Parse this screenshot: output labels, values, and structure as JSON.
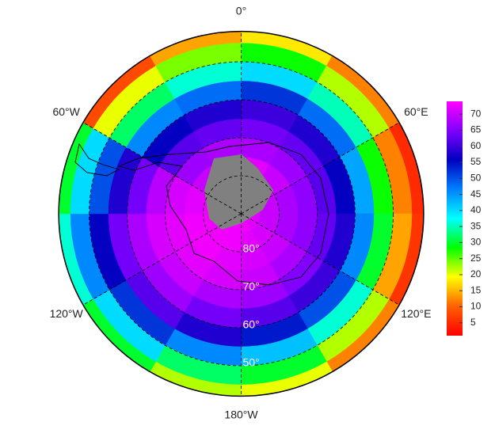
{
  "field": {
    "lat_edges": [
      -90,
      -85,
      -80,
      -75,
      -70,
      -65,
      -60,
      -55,
      -50,
      -45,
      -42
    ],
    "lon_edges": [
      0,
      30,
      60,
      90,
      120,
      150,
      180,
      210,
      240,
      270,
      300,
      330,
      360
    ],
    "values": [
      [
        73,
        73,
        72,
        68,
        64,
        60,
        52,
        40,
        28,
        18
      ],
      [
        73,
        72,
        70,
        67,
        63,
        58,
        48,
        35,
        22,
        12
      ],
      [
        72,
        70,
        68,
        66,
        62,
        56,
        44,
        28,
        12,
        5
      ],
      [
        72,
        70,
        68,
        66,
        63,
        58,
        46,
        30,
        14,
        6
      ],
      [
        72,
        71,
        70,
        68,
        65,
        60,
        50,
        36,
        22,
        12
      ],
      [
        73,
        72,
        71,
        70,
        67,
        62,
        54,
        42,
        30,
        20
      ],
      [
        73,
        73,
        72,
        71,
        68,
        64,
        58,
        46,
        32,
        22
      ],
      [
        73,
        73,
        73,
        72,
        70,
        67,
        62,
        52,
        40,
        30
      ],
      [
        73,
        73,
        73,
        72,
        71,
        68,
        64,
        56,
        46,
        36
      ],
      [
        73,
        73,
        72,
        71,
        69,
        64,
        58,
        50,
        40,
        30
      ],
      [
        73,
        72,
        70,
        67,
        62,
        56,
        46,
        32,
        20,
        8
      ],
      [
        73,
        73,
        71,
        68,
        63,
        58,
        48,
        36,
        24,
        14
      ]
    ]
  },
  "colormap": [
    "#ff0000",
    "#ff6000",
    "#ffff00",
    "#00ff00",
    "#00ffff",
    "#0080ff",
    "#0000c0",
    "#8000ff",
    "#ff00ff"
  ],
  "colorbar": {
    "lim": [
      1,
      74
    ],
    "ticks": [
      5,
      10,
      15,
      20,
      25,
      30,
      35,
      40,
      45,
      50,
      55,
      60,
      65,
      70
    ]
  },
  "lon_lines": [
    {
      "value": 0,
      "label": "0°"
    },
    {
      "value": 60,
      "label": "60°E"
    },
    {
      "value": 120,
      "label": "120°E"
    },
    {
      "value": 180,
      "label": "180°W"
    },
    {
      "value": -120,
      "label": "120°W"
    },
    {
      "value": -60,
      "label": "60°W"
    }
  ],
  "lat_lines": [
    {
      "value": -80,
      "label": "80°"
    },
    {
      "value": -70,
      "label": "70°"
    },
    {
      "value": -60,
      "label": "60°"
    },
    {
      "value": -50,
      "label": "50°"
    }
  ]
}
